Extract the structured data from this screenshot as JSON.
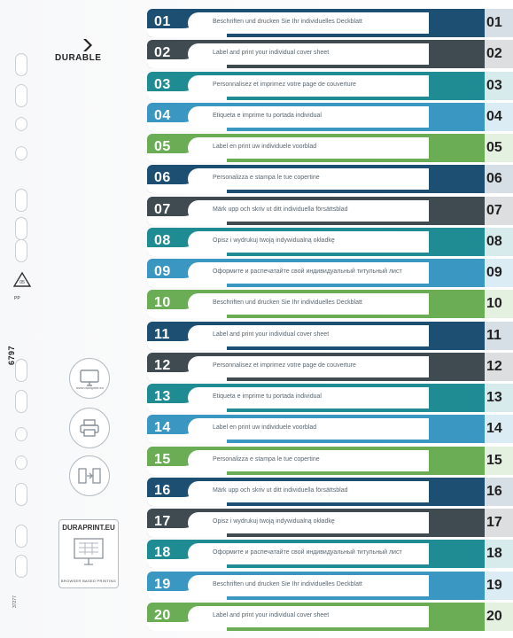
{
  "brand": {
    "name": "DURABLE"
  },
  "side": {
    "recycle_code": "05",
    "recycle_material": "PP",
    "product_code": "6797",
    "small_code": "37277",
    "web_url": "www.duraprint.eu",
    "duraprint_title": "DURAPRINT.EU",
    "duraprint_sub": "BROWSER BASED PRINTING",
    "icons": [
      "monitor-icon",
      "printer-icon",
      "import-export-icon",
      "screen-grid-icon"
    ]
  },
  "colors": {
    "navy": "#1d4f73",
    "slate": "#3f4a51",
    "teal": "#1f8c94",
    "blue": "#3a97c2",
    "green": "#6aad55"
  },
  "tabs": [
    {
      "num": "01",
      "label": "Beschriften und drucken Sie Ihr individuelles Deckblatt",
      "color": "#1d4f73"
    },
    {
      "num": "02",
      "label": "Label and print your individual cover sheet",
      "color": "#3f4a51"
    },
    {
      "num": "03",
      "label": "Personnalisez et imprimez votre page de couverture",
      "color": "#1f8c94"
    },
    {
      "num": "04",
      "label": "Etiqueta e imprime tu portada individual",
      "color": "#3a97c2"
    },
    {
      "num": "05",
      "label": "Label en print uw individuele voorblad",
      "color": "#6aad55"
    },
    {
      "num": "06",
      "label": "Personalizza e stampa le tue copertine",
      "color": "#1d4f73"
    },
    {
      "num": "07",
      "label": "Märk upp och skriv ut ditt individuella försättsblad",
      "color": "#3f4a51"
    },
    {
      "num": "08",
      "label": "Opisz i wydrukuj twoją indywidualną okładkę",
      "color": "#1f8c94"
    },
    {
      "num": "09",
      "label": "Оформите и распечатайте свой индивидуальный титульный лист",
      "color": "#3a97c2"
    },
    {
      "num": "10",
      "label": "Beschriften und drucken Sie Ihr individuelles Deckblatt",
      "color": "#6aad55"
    },
    {
      "num": "11",
      "label": "Label and print your individual cover sheet",
      "color": "#1d4f73"
    },
    {
      "num": "12",
      "label": "Personnalisez et imprimez votre page de couverture",
      "color": "#3f4a51"
    },
    {
      "num": "13",
      "label": "Etiqueta e imprime tu portada individual",
      "color": "#1f8c94"
    },
    {
      "num": "14",
      "label": "Label en print uw individuele voorblad",
      "color": "#3a97c2"
    },
    {
      "num": "15",
      "label": "Personalizza e stampa le tue copertine",
      "color": "#6aad55"
    },
    {
      "num": "16",
      "label": "Märk upp och skriv ut ditt individuella försättsblad",
      "color": "#1d4f73"
    },
    {
      "num": "17",
      "label": "Opisz i wydrukuj twoją indywidualną okładkę",
      "color": "#3f4a51"
    },
    {
      "num": "18",
      "label": "Оформите и распечатайте свой индивидуальный титульный лист",
      "color": "#1f8c94"
    },
    {
      "num": "19",
      "label": "Beschriften und drucken Sie Ihr individuelles Deckblatt",
      "color": "#3a97c2"
    },
    {
      "num": "20",
      "label": "Label and print your individual cover sheet",
      "color": "#6aad55"
    }
  ]
}
